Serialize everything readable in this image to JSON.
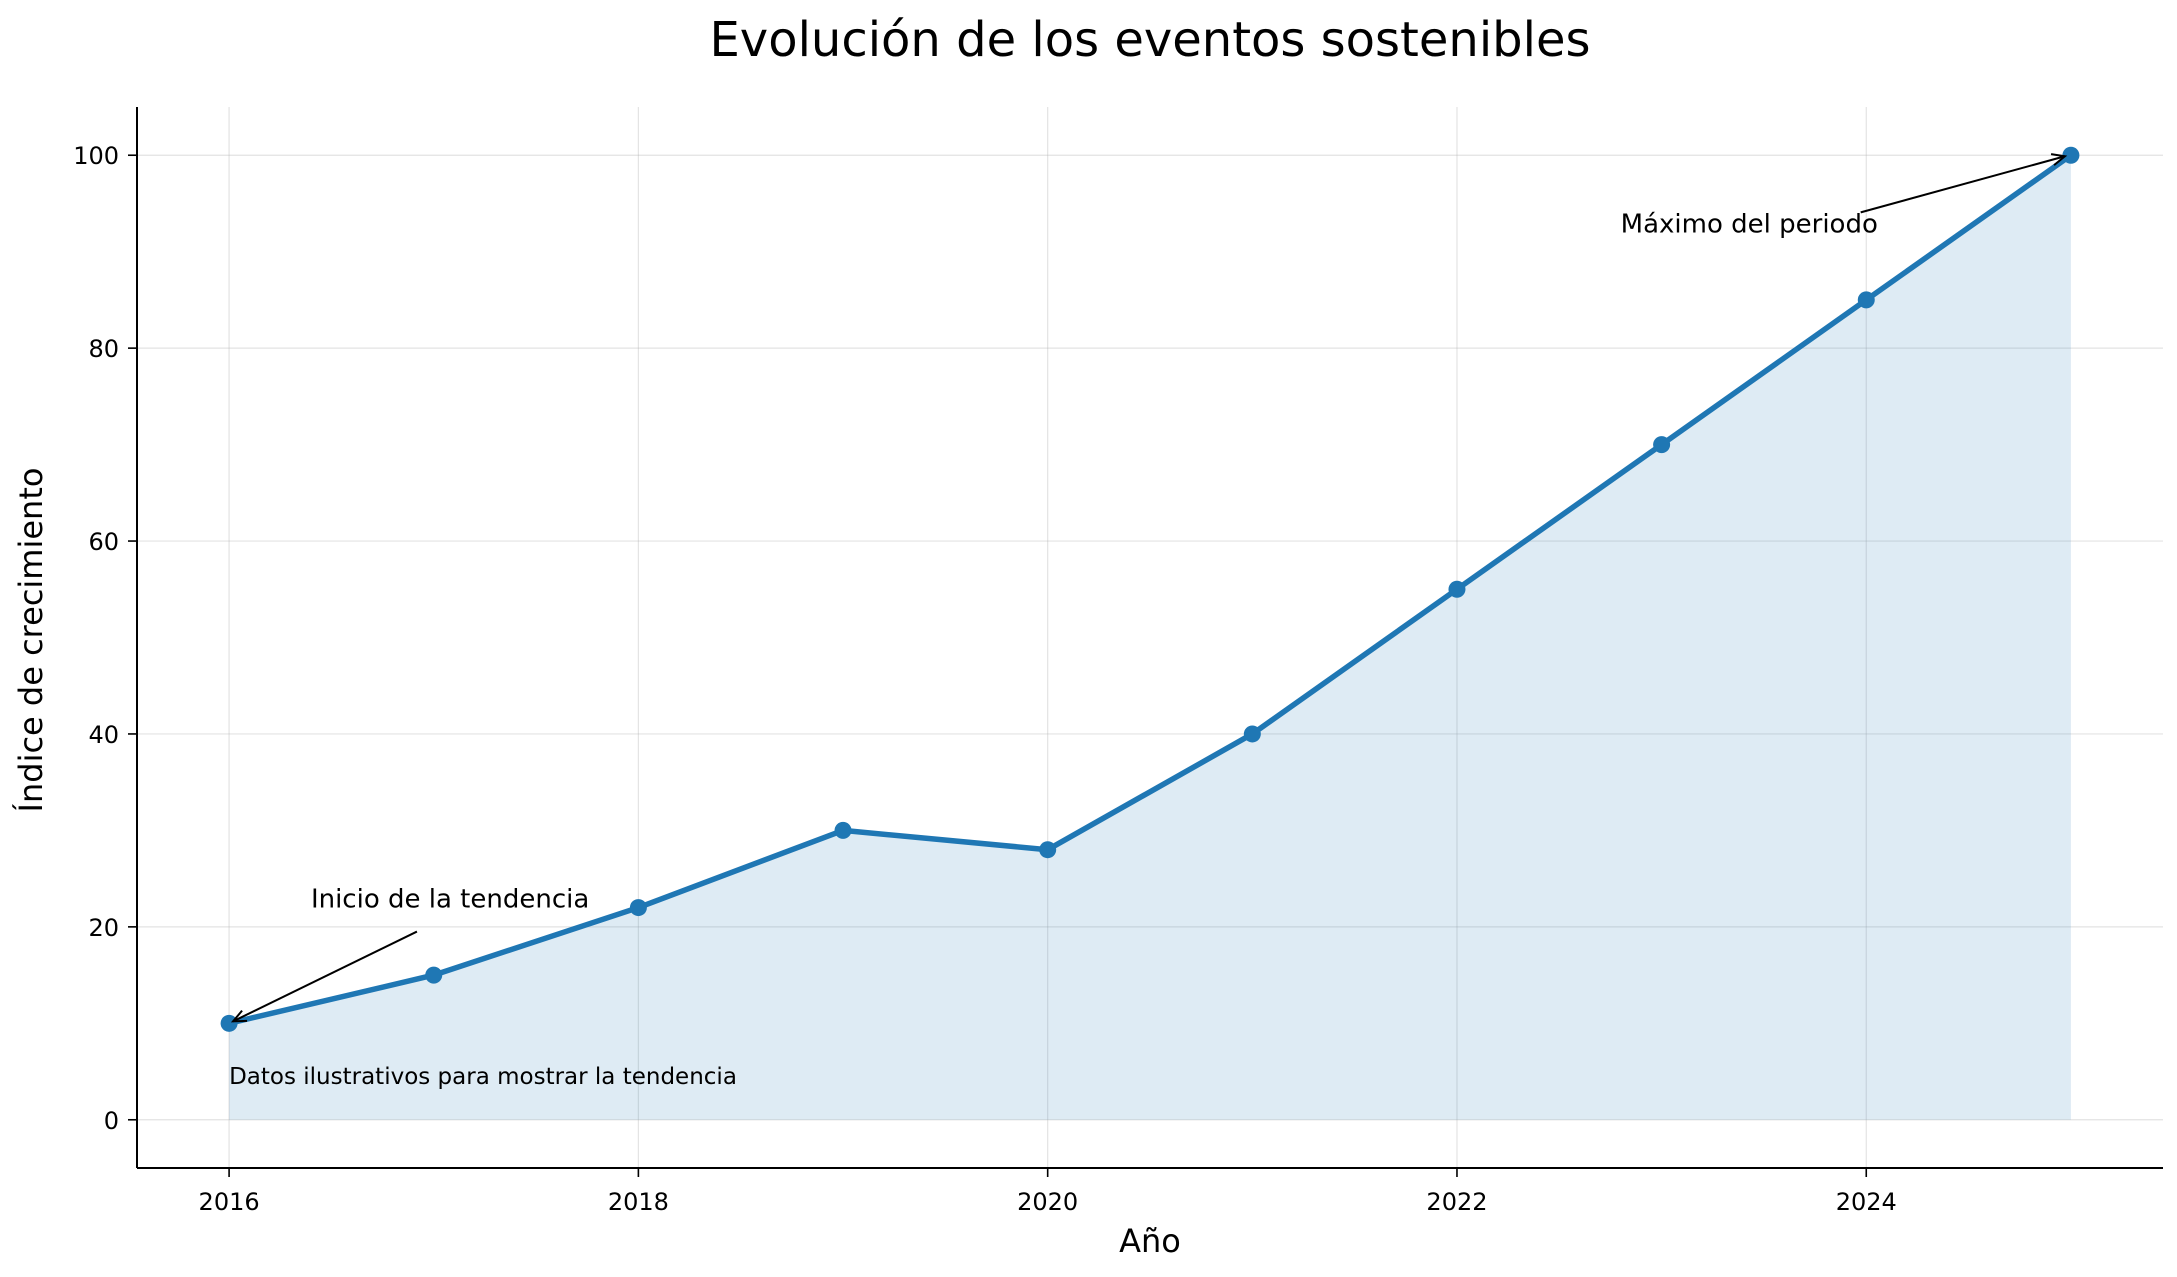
{
  "chart_data": {
    "type": "line",
    "title": "Evolución de los eventos sostenibles",
    "xlabel": "Año",
    "ylabel": "Índice de crecimiento",
    "x": [
      2016,
      2017,
      2018,
      2019,
      2020,
      2021,
      2022,
      2023,
      2024,
      2025
    ],
    "series": [
      {
        "name": "Índice de crecimiento",
        "values": [
          10,
          15,
          22,
          30,
          28,
          40,
          55,
          70,
          85,
          100
        ],
        "color": "#1f77b4",
        "fill": "#1f77b4",
        "fill_opacity": 0.15
      }
    ],
    "xlim": [
      2015.55,
      2025.45
    ],
    "ylim": [
      -5,
      105
    ],
    "xticks": [
      "2016",
      "2018",
      "2020",
      "2022",
      "2024"
    ],
    "yticks": [
      "0",
      "20",
      "40",
      "60",
      "80",
      "100"
    ],
    "grid": true,
    "annotations": [
      {
        "text": "Inicio de la tendencia",
        "point_x": 2016,
        "point_y": 10,
        "text_x": 2016.4,
        "text_y": 22
      },
      {
        "text": "Máximo del periodo",
        "point_x": 2025,
        "point_y": 100,
        "text_x": 2022.8,
        "text_y": 92
      }
    ],
    "note": "Datos ilustrativos para mostrar la tendencia"
  }
}
